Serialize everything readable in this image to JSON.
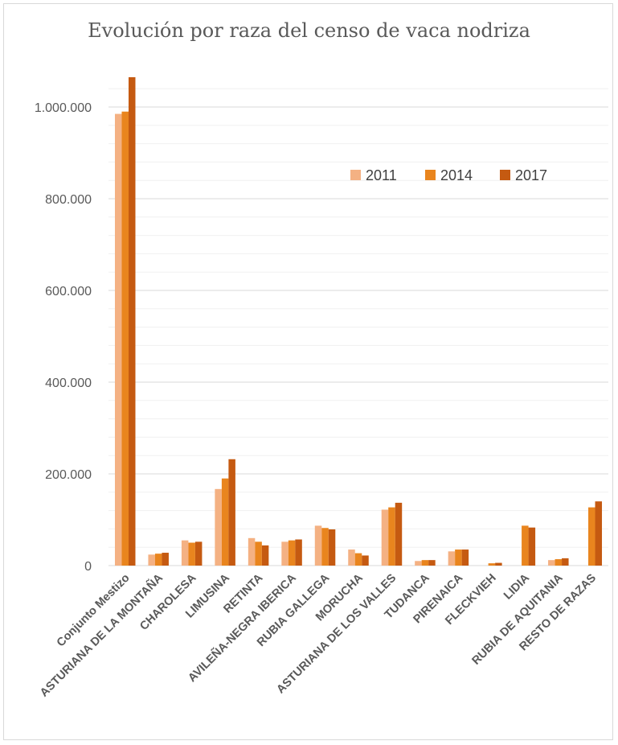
{
  "chart_data": {
    "type": "bar",
    "title": "Evolución por raza del censo de vaca nodriza",
    "xlabel": "",
    "ylabel": "",
    "ylim": [
      0,
      1000000
    ],
    "yticks": [
      0,
      200000,
      400000,
      600000,
      800000,
      1000000
    ],
    "ytick_labels": [
      "0",
      "200.000",
      "400.000",
      "600.000",
      "800.000",
      "1.000.000"
    ],
    "grid": true,
    "legend": "top-right",
    "categories": [
      "Conjunto Mestizo",
      "ASTURIANA DE LA MONTAÑA",
      "CHAROLESA",
      "LIMUSINA",
      "RETINTA",
      "AVILEÑA-NEGRA IBERICA",
      "RUBIA GALLEGA",
      "MORUCHA",
      "ASTURIANA DE LOS VALLES",
      "TUDANCA",
      "PIRENAICA",
      "FLECKVIEH",
      "LIDIA",
      "RUBIA DE AQUITANIA",
      "RESTO DE RAZAS"
    ],
    "series": [
      {
        "name": "2011",
        "color": "#F4B183",
        "values": [
          985000,
          24000,
          55000,
          167000,
          60000,
          52000,
          87000,
          35000,
          122000,
          10000,
          31000,
          0,
          0,
          12000,
          0
        ]
      },
      {
        "name": "2014",
        "color": "#E9851E",
        "values": [
          990000,
          26000,
          50000,
          190000,
          52000,
          55000,
          82000,
          27000,
          127000,
          12000,
          35000,
          5000,
          87000,
          14000,
          127000
        ]
      },
      {
        "name": "2017",
        "color": "#C55A11",
        "values": [
          1065000,
          28000,
          52000,
          232000,
          44000,
          57000,
          79000,
          22000,
          137000,
          12000,
          35000,
          6000,
          83000,
          16000,
          140000
        ]
      }
    ]
  }
}
